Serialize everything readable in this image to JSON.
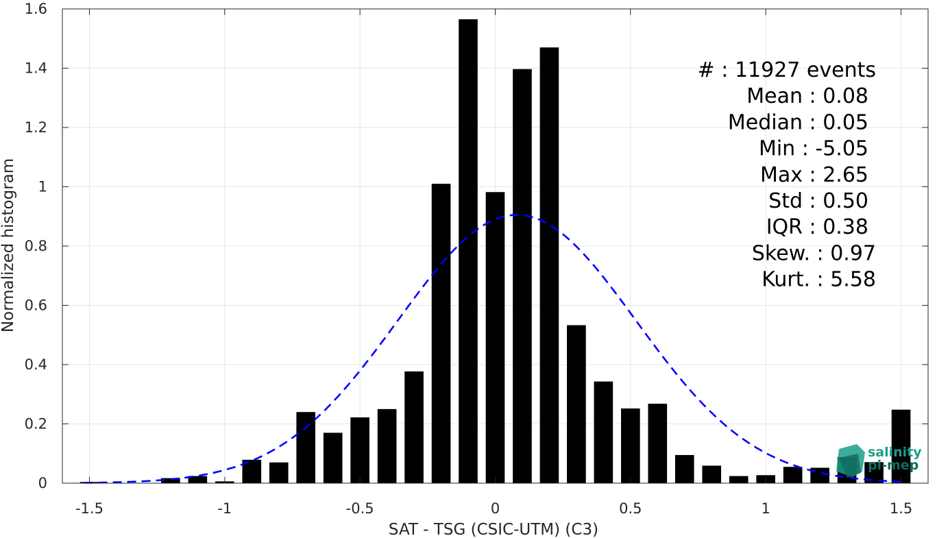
{
  "chart_data": {
    "type": "bar",
    "xlabel": "SAT - TSG (CSIC-UTM) (C3)",
    "ylabel": "Normalized histogram",
    "xlim": [
      -1.6,
      1.6
    ],
    "ylim": [
      0,
      1.6
    ],
    "xticks": [
      -1.5,
      -1,
      -0.5,
      0,
      0.5,
      1,
      1.5
    ],
    "xtick_labels": [
      "-1.5",
      "-1",
      "-0.5",
      "0",
      "0.5",
      "1",
      "1.5"
    ],
    "yticks": [
      0,
      0.2,
      0.4,
      0.6,
      0.8,
      1,
      1.2,
      1.4,
      1.6
    ],
    "ytick_labels": [
      "0",
      "0.2",
      "0.4",
      "0.6",
      "0.8",
      "1",
      "1.2",
      "1.4",
      "1.6"
    ],
    "grid": true,
    "bar_width": 0.07,
    "bars": {
      "x": [
        -1.5,
        -1.4,
        -1.3,
        -1.2,
        -1.1,
        -1.0,
        -0.9,
        -0.8,
        -0.7,
        -0.6,
        -0.5,
        -0.4,
        -0.3,
        -0.2,
        -0.1,
        0.0,
        0.1,
        0.2,
        0.3,
        0.4,
        0.5,
        0.6,
        0.7,
        0.8,
        0.9,
        1.0,
        1.1,
        1.2,
        1.3,
        1.4,
        1.5
      ],
      "values": [
        0.004,
        0.0,
        0.0,
        0.017,
        0.024,
        0.006,
        0.079,
        0.07,
        0.24,
        0.17,
        0.222,
        0.25,
        0.377,
        1.01,
        1.565,
        0.982,
        1.397,
        1.47,
        0.533,
        0.343,
        0.252,
        0.268,
        0.095,
        0.059,
        0.024,
        0.027,
        0.055,
        0.052,
        0.088,
        0.071,
        0.248
      ],
      "color": "#000000"
    },
    "fit_curve": {
      "kind": "normal",
      "mean": 0.08,
      "std": 0.44,
      "peak": 0.905,
      "color": "#0000ff",
      "style": "dashed"
    },
    "annotations": [
      "#  : 11927 events",
      "Mean : 0.08",
      "Median : 0.05",
      "Min : -5.05",
      "Max : 2.65",
      "Std : 0.50",
      "IQR : 0.38",
      "Skew. : 0.97",
      "Kurt. : 5.58"
    ]
  },
  "logo": {
    "line1": "salinity",
    "line2": "pi-mep",
    "color": "#1a9e8a"
  }
}
